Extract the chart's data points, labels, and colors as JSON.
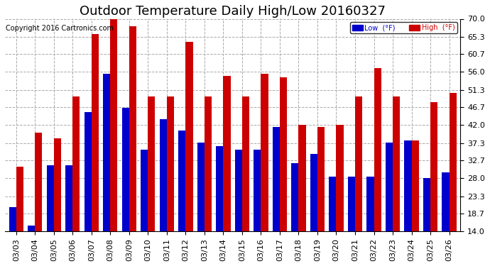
{
  "title": "Outdoor Temperature Daily High/Low 20160327",
  "copyright": "Copyright 2016 Cartronics.com",
  "legend_low": "Low  (°F)",
  "legend_high": "High  (°F)",
  "dates": [
    "03/03",
    "03/04",
    "03/05",
    "03/06",
    "03/07",
    "03/08",
    "03/09",
    "03/10",
    "03/11",
    "03/12",
    "03/13",
    "03/14",
    "03/15",
    "03/16",
    "03/17",
    "03/18",
    "03/19",
    "03/20",
    "03/21",
    "03/22",
    "03/23",
    "03/24",
    "03/25",
    "03/26"
  ],
  "highs": [
    31.0,
    40.0,
    38.5,
    49.5,
    66.0,
    70.0,
    68.0,
    49.5,
    49.5,
    64.0,
    49.5,
    55.0,
    49.5,
    55.5,
    54.5,
    42.0,
    41.5,
    42.0,
    49.5,
    57.0,
    49.5,
    38.0,
    48.0,
    50.5
  ],
  "lows": [
    20.5,
    15.5,
    31.5,
    31.5,
    45.5,
    55.5,
    46.5,
    35.5,
    43.5,
    40.5,
    37.5,
    36.5,
    35.5,
    35.5,
    41.5,
    32.0,
    34.5,
    28.5,
    28.5,
    28.5,
    37.5,
    38.0,
    28.0,
    29.5
  ],
  "ylim": [
    14.0,
    70.0
  ],
  "yticks": [
    14.0,
    18.7,
    23.3,
    28.0,
    32.7,
    37.3,
    42.0,
    46.7,
    51.3,
    56.0,
    60.7,
    65.3,
    70.0
  ],
  "bar_color_low": "#0000cc",
  "bar_color_high": "#cc0000",
  "background_color": "#ffffff",
  "grid_color": "#aaaaaa",
  "title_fontsize": 13,
  "tick_fontsize": 8,
  "copyright_fontsize": 7
}
